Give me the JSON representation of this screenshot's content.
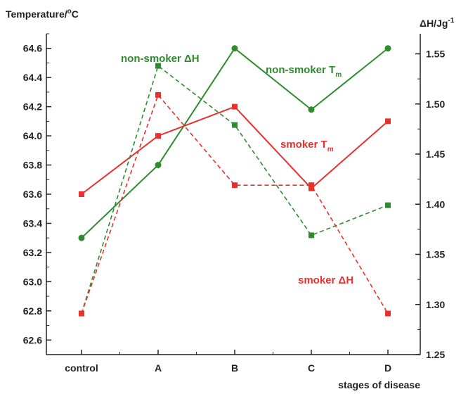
{
  "chart_data": {
    "type": "line",
    "xlabel": "stages of disease",
    "categories": [
      "control",
      "A",
      "B",
      "C",
      "D"
    ],
    "y_left": {
      "label_main": "Temperature/",
      "label_sup": "o",
      "label_unit": "C",
      "lim": [
        62.5,
        64.7
      ],
      "ticks": [
        "62.6",
        "62.8",
        "63.0",
        "63.2",
        "63.4",
        "63.6",
        "63.8",
        "64.0",
        "64.2",
        "64.4",
        "64.6"
      ]
    },
    "y_right": {
      "label_main": "ΔH/Jg",
      "label_sup": "-1",
      "lim": [
        1.25,
        1.57
      ],
      "ticks": [
        "1.25",
        "1.30",
        "1.35",
        "1.40",
        "1.45",
        "1.50",
        "1.55"
      ]
    },
    "series": [
      {
        "name": "non-smoker T",
        "name_sub": "m",
        "axis": "left",
        "color": "#2e8b2e",
        "dashed": false,
        "marker": "circle",
        "values": [
          63.3,
          63.8,
          64.6,
          64.18,
          64.6
        ]
      },
      {
        "name": "smoker T",
        "name_sub": "m",
        "axis": "left",
        "color": "#e8302c",
        "dashed": false,
        "marker": "square",
        "values": [
          63.6,
          64.0,
          64.2,
          63.64,
          64.1
        ]
      },
      {
        "name": "non-smoker ΔH",
        "name_sub": "",
        "axis": "right",
        "color": "#2e8b2e",
        "dashed": true,
        "marker": "square",
        "values": [
          1.291,
          1.538,
          1.479,
          1.369,
          1.399
        ]
      },
      {
        "name": "smoker ΔH",
        "name_sub": "",
        "axis": "right",
        "color": "#e8302c",
        "dashed": true,
        "marker": "square",
        "values": [
          1.291,
          1.509,
          1.419,
          1.419,
          1.291
        ]
      }
    ],
    "grid": false,
    "legend": "inline labels"
  }
}
